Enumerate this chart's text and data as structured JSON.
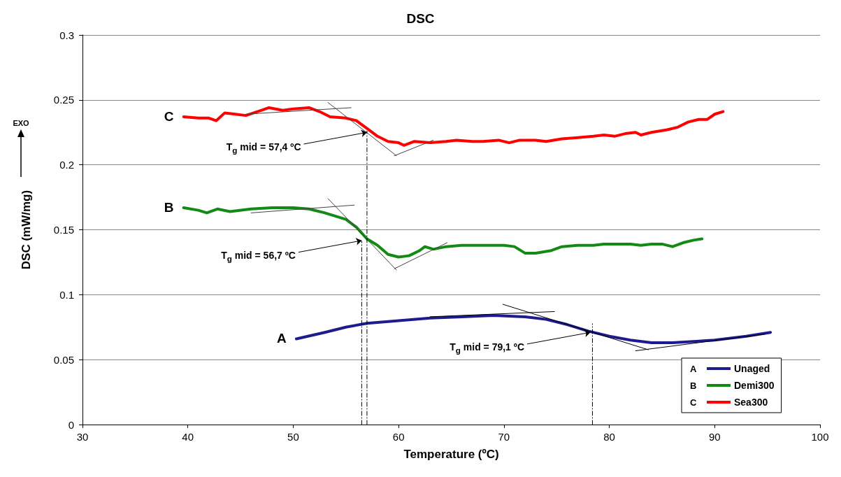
{
  "chart_data": {
    "type": "line",
    "title": "DSC",
    "xlabel": "Temperature (ºC)",
    "ylabel": "DSC (mW/mg)",
    "xlim": [
      30,
      100
    ],
    "xticks": [
      30,
      40,
      50,
      60,
      70,
      80,
      90,
      100
    ],
    "ylim": [
      0,
      0.3
    ],
    "yticks": [
      0,
      0.05,
      0.1,
      0.15,
      0.2,
      0.25,
      0.3
    ],
    "grid": "y",
    "legend": "bottom right",
    "marker": "none",
    "line_style": "solid",
    "series": [
      {
        "name": "Unaged",
        "color": "#1c1c8e",
        "x": [
          50.3,
          53,
          55,
          57,
          60,
          63,
          66,
          69,
          72,
          74,
          76,
          78,
          80,
          82,
          84,
          86,
          88,
          90,
          93,
          95.3
        ],
        "values": [
          0.066,
          0.071,
          0.075,
          0.078,
          0.08,
          0.082,
          0.083,
          0.084,
          0.083,
          0.081,
          0.077,
          0.072,
          0.068,
          0.065,
          0.063,
          0.063,
          0.064,
          0.065,
          0.068,
          0.071
        ]
      },
      {
        "name": "Demi300",
        "color": "#138a13",
        "x": [
          39.6,
          41,
          41.8,
          42.8,
          44,
          46,
          48,
          50,
          51.5,
          53,
          55,
          56,
          57,
          58,
          59,
          60,
          61,
          62,
          62.5,
          63.3,
          64.5,
          66,
          68,
          70,
          71,
          72,
          73,
          74.5,
          75.5,
          77,
          78.5,
          79.5,
          81,
          82,
          83,
          84,
          85,
          86,
          87,
          88,
          88.8
        ],
        "values": [
          0.167,
          0.165,
          0.163,
          0.166,
          0.164,
          0.166,
          0.167,
          0.167,
          0.166,
          0.163,
          0.158,
          0.152,
          0.143,
          0.138,
          0.131,
          0.129,
          0.13,
          0.134,
          0.137,
          0.135,
          0.137,
          0.138,
          0.138,
          0.138,
          0.137,
          0.132,
          0.132,
          0.134,
          0.137,
          0.138,
          0.138,
          0.139,
          0.139,
          0.139,
          0.138,
          0.139,
          0.139,
          0.137,
          0.14,
          0.142,
          0.143
        ]
      },
      {
        "name": "Sea300",
        "color": "#ff0000",
        "x": [
          39.6,
          41,
          42,
          42.7,
          43.5,
          44.5,
          45.5,
          47,
          47.7,
          49,
          50,
          51.5,
          52.5,
          53.5,
          55,
          56,
          57,
          58,
          59,
          60,
          60.5,
          61.5,
          63,
          64.5,
          65.5,
          67,
          68,
          69.5,
          70.5,
          71.5,
          73,
          74,
          75.5,
          77,
          78.5,
          79.5,
          80.5,
          81.5,
          82.5,
          83,
          84,
          85.5,
          86.5,
          87.5,
          88.5,
          89.3,
          90,
          90.8
        ],
        "values": [
          0.237,
          0.236,
          0.236,
          0.234,
          0.24,
          0.239,
          0.238,
          0.242,
          0.244,
          0.242,
          0.243,
          0.244,
          0.241,
          0.237,
          0.236,
          0.234,
          0.228,
          0.222,
          0.218,
          0.217,
          0.215,
          0.218,
          0.217,
          0.218,
          0.219,
          0.218,
          0.218,
          0.219,
          0.217,
          0.219,
          0.219,
          0.218,
          0.22,
          0.221,
          0.222,
          0.223,
          0.222,
          0.224,
          0.225,
          0.223,
          0.225,
          0.227,
          0.229,
          0.233,
          0.235,
          0.235,
          0.239,
          0.241
        ]
      },
      {
        "color": "#000000",
        "x": [
          63,
          74.8
        ],
        "values": [
          0.083,
          0.087
        ]
      },
      {
        "color": "#000000",
        "x": [
          69.9,
          83.7
        ],
        "values": [
          0.0926,
          0.0576
        ]
      },
      {
        "color": "#000000",
        "x": [
          82.5,
          94.8
        ],
        "values": [
          0.0568,
          0.0697
        ]
      },
      {
        "color": "#444444",
        "x": [
          46,
          55.8
        ],
        "values": [
          0.163,
          0.169
        ]
      },
      {
        "color": "#444444",
        "x": [
          53.3,
          59.8
        ],
        "values": [
          0.174,
          0.119
        ]
      },
      {
        "color": "#444444",
        "x": [
          59.6,
          64.6
        ],
        "values": [
          0.12,
          0.14
        ]
      },
      {
        "color": "#444444",
        "x": [
          45.5,
          55.5
        ],
        "values": [
          0.239,
          0.244
        ]
      },
      {
        "color": "#444444",
        "x": [
          53.3,
          59.8
        ],
        "values": [
          0.248,
          0.207
        ]
      },
      {
        "color": "#444444",
        "x": [
          59.6,
          63.3
        ],
        "values": [
          0.207,
          0.219
        ]
      },
      {
        "color": "#000000",
        "line_style": "dashed",
        "x": [
          56.5,
          56.5
        ],
        "values": [
          0,
          0.141
        ]
      },
      {
        "color": "#000000",
        "line_style": "dashed",
        "x": [
          57,
          57
        ],
        "values": [
          0,
          0.226
        ]
      },
      {
        "color": "#000000",
        "line_style": "dashed",
        "x": [
          78.4,
          78.4
        ],
        "values": [
          0,
          0.0776
        ]
      }
    ],
    "annotations": [
      {
        "text": "A",
        "x": 50.3,
        "y": 0.066
      },
      {
        "text": "B",
        "x": 39.6,
        "y": 0.167
      },
      {
        "text": "C",
        "x": 39.6,
        "y": 0.237
      },
      {
        "text": "T$_{g}$ mid = 79,1 ºC",
        "x": 78.2,
        "y": 0.071
      },
      {
        "text": "T$_{g}$ mid = 56,7 ºC",
        "x": 56.5,
        "y": 0.1417
      },
      {
        "text": "T$_{g}$ mid = 57,4 ºC",
        "x": 57,
        "y": 0.225
      },
      "EXO"
    ]
  }
}
